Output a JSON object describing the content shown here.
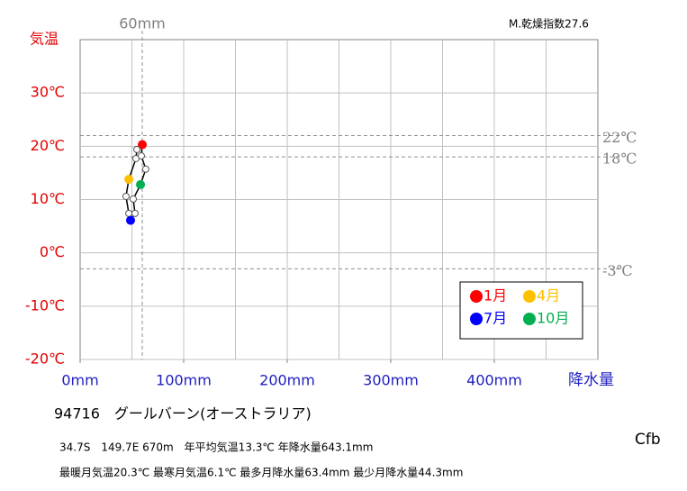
{
  "chart_data": {
    "type": "climograph",
    "station": "94716　グールバーン(オーストラリア)",
    "location_info": "34.7S　149.7E 670m　年平均気温13.3℃ 年降水量643.1mm",
    "extremes_info": "最暖月気温20.3℃ 最寒月気温6.1℃ 最多月降水量63.4mm 最少月降水量44.3mm",
    "climate_class": "Cfb",
    "aridity_index": "M.乾燥指数27.6",
    "y_axis_label": "気温",
    "x_axis_label": "降水量",
    "x": [
      60.0,
      54.8,
      53.9,
      47.0,
      44.3,
      47.0,
      48.7,
      53.0,
      51.3,
      58.3,
      63.4,
      59.1
    ],
    "values": [
      20.3,
      19.4,
      17.7,
      13.8,
      10.6,
      7.4,
      6.1,
      7.4,
      10.1,
      12.8,
      15.7,
      18.2
    ],
    "point_colors": [
      "#ff0000",
      "#ffffff",
      "#ffffff",
      "#ffc000",
      "#ffffff",
      "#ffffff",
      "#0000ff",
      "#ffffff",
      "#ffffff",
      "#00b050",
      "#ffffff",
      "#ffffff"
    ],
    "legend": [
      {
        "label": "1月",
        "color": "#ff0000"
      },
      {
        "label": "4月",
        "color": "#ffc000"
      },
      {
        "label": "7月",
        "color": "#0000ff"
      },
      {
        "label": "10月",
        "color": "#00b050"
      }
    ],
    "xlim": [
      0,
      500
    ],
    "ylim": [
      -20,
      40
    ],
    "xticks": [
      {
        "value": 0,
        "label": "0mm"
      },
      {
        "value": 100,
        "label": "100mm"
      },
      {
        "value": 200,
        "label": "200mm"
      },
      {
        "value": 300,
        "label": "300mm"
      },
      {
        "value": 400,
        "label": "400mm"
      }
    ],
    "yticks": [
      {
        "value": -20,
        "label": "-20℃"
      },
      {
        "value": -10,
        "label": "-10℃"
      },
      {
        "value": 0,
        "label": "0℃"
      },
      {
        "value": 10,
        "label": "10℃"
      },
      {
        "value": 20,
        "label": "20℃"
      },
      {
        "value": 30,
        "label": "30℃"
      }
    ],
    "x_grid_step": 50,
    "x_reference_lines": [
      {
        "value": 60,
        "label": "60mm"
      }
    ],
    "y_reference_lines": [
      {
        "value": 22,
        "label": "22℃"
      },
      {
        "value": 18,
        "label": "18℃"
      },
      {
        "value": -3,
        "label": "-3℃"
      }
    ]
  }
}
